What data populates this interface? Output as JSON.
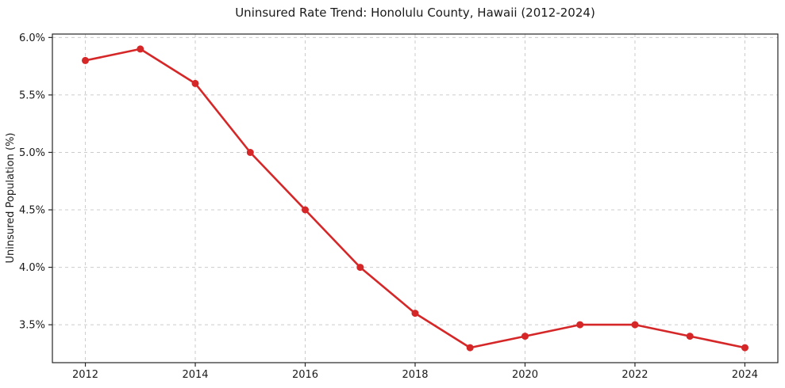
{
  "chart": {
    "title": "Uninsured Rate Trend: Honolulu County, Hawaii (2012-2024)",
    "ylabel": "Uninsured Population (%)",
    "xlabel": ""
  },
  "chart_data": {
    "type": "line",
    "series_name": "Uninsured rate",
    "x": [
      2012,
      2013,
      2014,
      2015,
      2016,
      2017,
      2018,
      2019,
      2020,
      2021,
      2022,
      2023,
      2024
    ],
    "values": [
      5.8,
      5.9,
      5.6,
      5.0,
      4.5,
      4.0,
      3.6,
      3.3,
      3.4,
      3.5,
      3.5,
      3.4,
      3.3
    ],
    "title": "Uninsured Rate Trend: Honolulu County, Hawaii (2012-2024)",
    "xlabel": "",
    "ylabel": "Uninsured Population (%)",
    "xlim": [
      2011.4,
      2024.6
    ],
    "ylim": [
      3.17,
      6.03
    ],
    "x_ticks": [
      2012,
      2014,
      2016,
      2018,
      2020,
      2022,
      2024
    ],
    "x_tick_labels": [
      "2012",
      "2014",
      "2016",
      "2018",
      "2020",
      "2022",
      "2024"
    ],
    "y_ticks": [
      3.5,
      4.0,
      4.5,
      5.0,
      5.5,
      6.0
    ],
    "y_tick_labels": [
      "3.5%",
      "4.0%",
      "4.5%",
      "5.0%",
      "5.5%",
      "6.0%"
    ],
    "grid": true,
    "legend": null,
    "line_color": "#d62728",
    "marker": "circle",
    "marker_size": 4.5,
    "background_color": "#ffffff",
    "grid_color": "#cccccc",
    "spine_color": "#262626",
    "text_color": "#1a1a1a"
  }
}
